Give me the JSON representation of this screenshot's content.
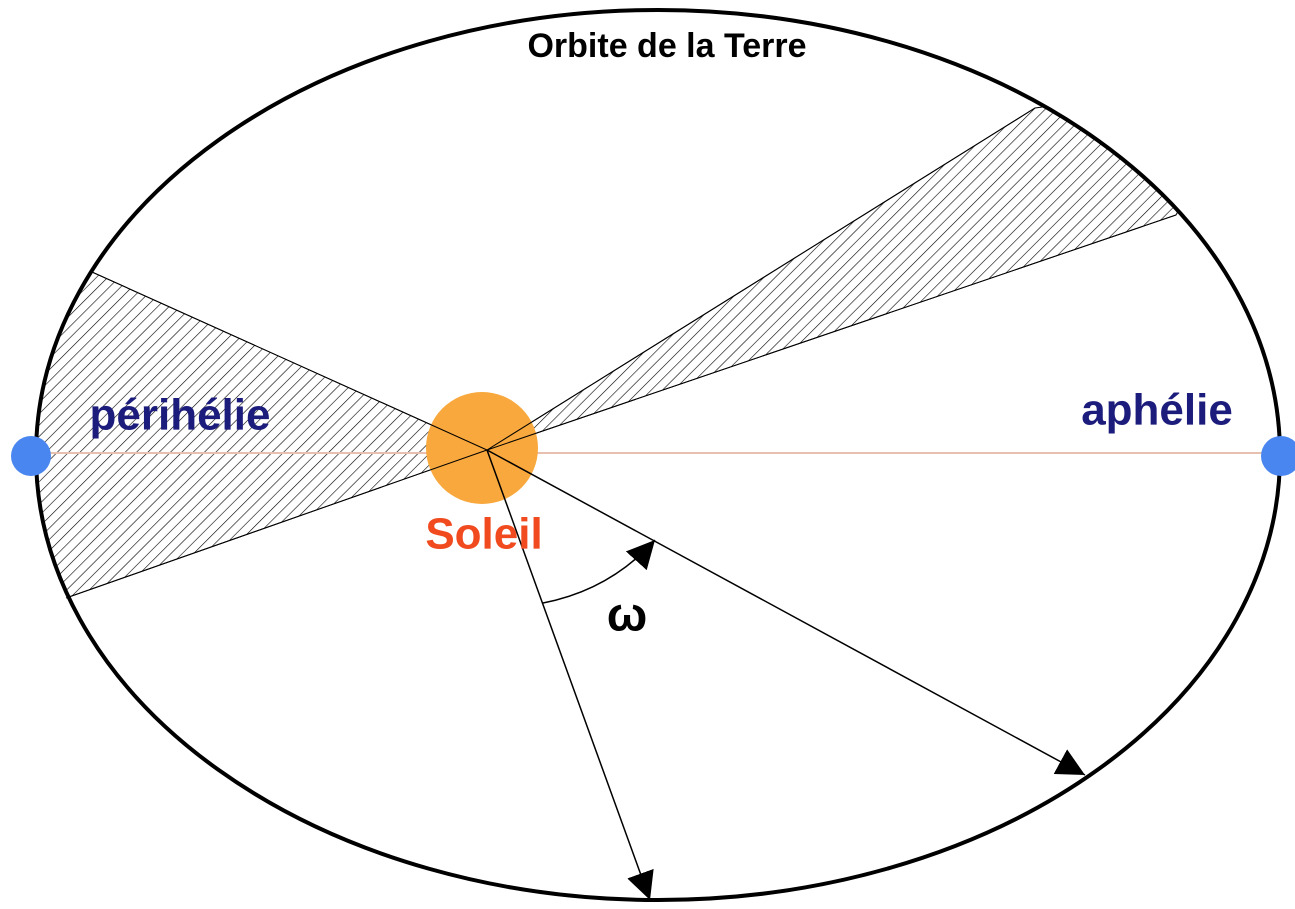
{
  "title": "Orbite de la Terre",
  "labels": {
    "perihelion": "périhélie",
    "aphelion": "aphélie",
    "sun": "Soleil",
    "angle": "ω"
  }
}
